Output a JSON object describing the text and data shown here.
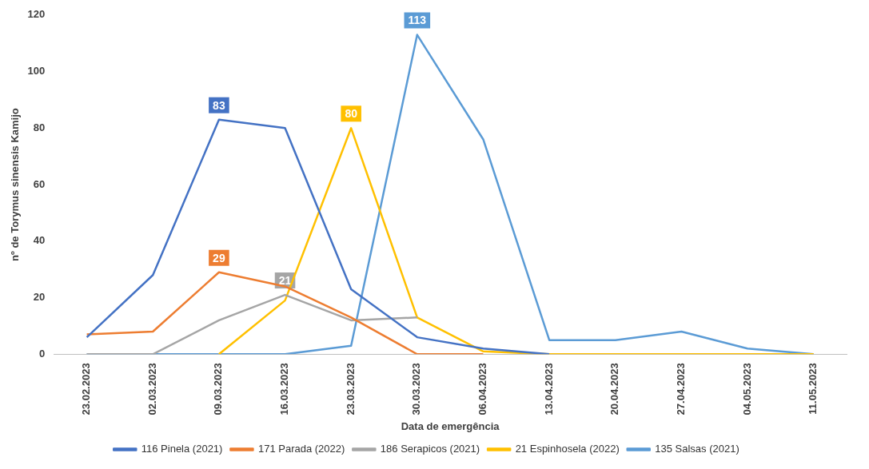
{
  "chart_data": {
    "type": "line",
    "xlabel": "Data de emergência",
    "ylabel": "nº de Torymus sinensis Kamijo",
    "categories": [
      "23.02.2023",
      "02.03.2023",
      "09.03.2023",
      "16.03.2023",
      "23.03.2023",
      "30.03.2023",
      "06.04.2023",
      "13.04.2023",
      "20.04.2023",
      "27.04.2023",
      "04.05.2023",
      "11.05.2023"
    ],
    "ylim": [
      0,
      120
    ],
    "yticks": [
      0,
      20,
      40,
      60,
      80,
      100,
      120
    ],
    "grid": false,
    "legend": "bottom",
    "marker": "none",
    "line_style": "solid",
    "series": [
      {
        "name": "116 Pinela (2021)",
        "color": "#4472c4",
        "values": [
          6,
          28,
          83,
          80,
          23,
          6,
          2,
          0,
          null,
          null,
          null,
          null
        ],
        "value_labels": [
          null,
          null,
          "83",
          null,
          null,
          null,
          null,
          null,
          null,
          null,
          null,
          null
        ]
      },
      {
        "name": "171 Parada (2022)",
        "color": "#ed7d31",
        "values": [
          7,
          8,
          29,
          24,
          13,
          0,
          0,
          null,
          null,
          null,
          null,
          null
        ],
        "value_labels": [
          null,
          null,
          "29",
          null,
          null,
          null,
          null,
          null,
          null,
          null,
          null,
          null
        ]
      },
      {
        "name": "186 Serapicos (2021)",
        "color": "#a5a5a5",
        "values": [
          0,
          0,
          12,
          21,
          12,
          13,
          null,
          null,
          null,
          null,
          null,
          null
        ],
        "value_labels": [
          null,
          null,
          null,
          "21",
          null,
          null,
          null,
          null,
          null,
          null,
          null,
          null
        ]
      },
      {
        "name": "21 Espinhosela (2022)",
        "color": "#ffc000",
        "values": [
          null,
          null,
          0,
          19,
          80,
          13,
          1,
          0,
          0,
          0,
          0,
          0
        ],
        "value_labels": [
          null,
          null,
          null,
          null,
          "80",
          null,
          null,
          null,
          null,
          null,
          null,
          null
        ]
      },
      {
        "name": "135 Salsas (2021)",
        "color": "#5b9bd5",
        "values": [
          0,
          0,
          0,
          0,
          3,
          113,
          76,
          5,
          5,
          8,
          2,
          0
        ],
        "value_labels": [
          null,
          null,
          null,
          null,
          null,
          "113",
          null,
          null,
          null,
          null,
          null,
          null
        ]
      }
    ]
  }
}
